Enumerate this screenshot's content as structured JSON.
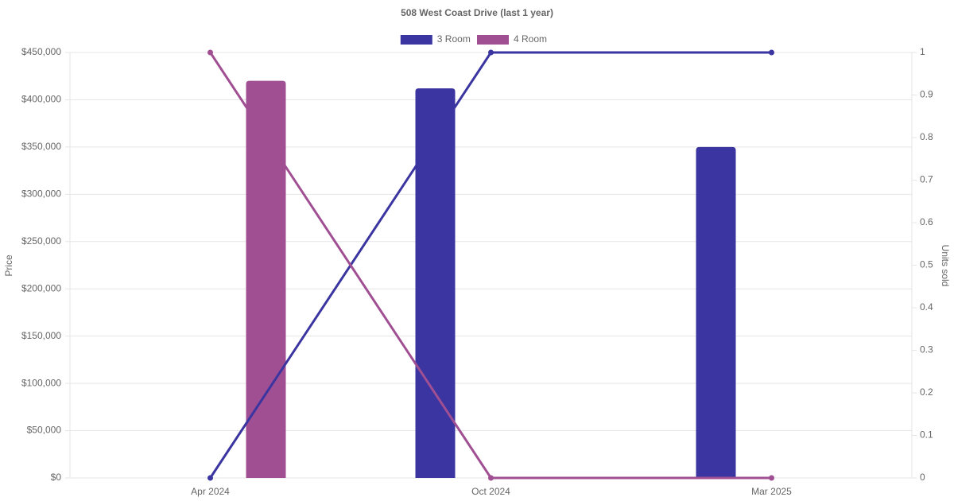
{
  "chart_data": {
    "type": "bar-line",
    "title": "508 West Coast Drive (last 1 year)",
    "y_label": "Price",
    "y2_label": "Units sold",
    "categories": [
      "Apr 2024",
      "Oct 2024",
      "Mar 2025"
    ],
    "series": [
      {
        "name": "3 Room",
        "color": "#3a35a0",
        "values": [
          null,
          412000,
          350000
        ],
        "units_sold": [
          0,
          1,
          1
        ]
      },
      {
        "name": "4 Room",
        "color": "#a04f93",
        "values": [
          420000,
          null,
          null
        ],
        "units_sold": [
          1,
          0,
          0
        ]
      }
    ],
    "ylim": [
      0,
      450000
    ],
    "yticks": [
      {
        "value": 0,
        "label": "$0"
      },
      {
        "value": 50000,
        "label": "$50,000"
      },
      {
        "value": 100000,
        "label": "$100,000"
      },
      {
        "value": 150000,
        "label": "$150,000"
      },
      {
        "value": 200000,
        "label": "$200,000"
      },
      {
        "value": 250000,
        "label": "$250,000"
      },
      {
        "value": 300000,
        "label": "$300,000"
      },
      {
        "value": 350000,
        "label": "$350,000"
      },
      {
        "value": 400000,
        "label": "$400,000"
      },
      {
        "value": 450000,
        "label": "$450,000"
      }
    ],
    "y2lim": [
      0,
      1
    ],
    "y2ticks": [
      0,
      0.1,
      0.2,
      0.3,
      0.4,
      0.5,
      0.6,
      0.7,
      0.8,
      0.9,
      1
    ],
    "grid": true,
    "legend": "top"
  }
}
